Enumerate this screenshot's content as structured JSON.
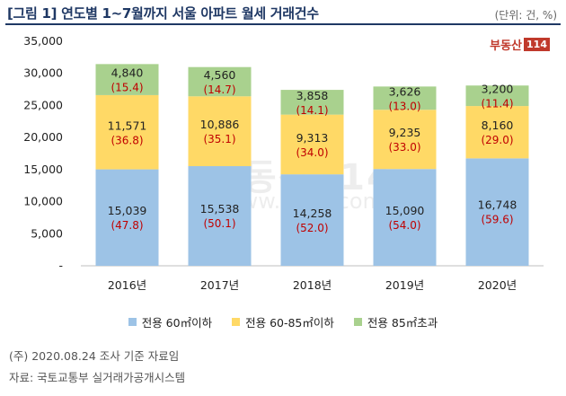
{
  "header": {
    "title": "[그림 1] 연도별 1~7월까지 서울 아파트 월세 거래건수",
    "unit": "(단위: 건, %)"
  },
  "logo": {
    "text": "부동산",
    "number": "114"
  },
  "watermark": {
    "text": "부동산114",
    "url": "www.r114.com"
  },
  "chart_data": {
    "type": "bar",
    "stacked": true,
    "categories": [
      "2016년",
      "2017년",
      "2018년",
      "2019년",
      "2020년"
    ],
    "series": [
      {
        "name": "전용 60㎡이하",
        "color": "#9dc3e6",
        "values": [
          15039,
          15538,
          14258,
          15090,
          16748
        ],
        "value_labels": [
          "15,039",
          "15,538",
          "14,258",
          "15,090",
          "16,748"
        ],
        "pct_labels": [
          "(47.8)",
          "(50.1)",
          "(52.0)",
          "(54.0)",
          "(59.6)"
        ]
      },
      {
        "name": "전용 60-85㎡이하",
        "color": "#ffd966",
        "values": [
          11571,
          10886,
          9313,
          9235,
          8160
        ],
        "value_labels": [
          "11,571",
          "10,886",
          "9,313",
          "9,235",
          "8,160"
        ],
        "pct_labels": [
          "(36.8)",
          "(35.1)",
          "(34.0)",
          "(33.0)",
          "(29.0)"
        ]
      },
      {
        "name": "전용 85㎡초과",
        "color": "#a9d18e",
        "values": [
          4840,
          4560,
          3858,
          3626,
          3200
        ],
        "value_labels": [
          "4,840",
          "4,560",
          "3,858",
          "3,626",
          "3,200"
        ],
        "pct_labels": [
          "(15.4)",
          "(14.7)",
          "(14.1)",
          "(13.0)",
          "(11.4)"
        ]
      }
    ],
    "yticks": [
      0,
      5000,
      10000,
      15000,
      20000,
      25000,
      30000,
      35000
    ],
    "ytick_labels": [
      "-",
      "5,000",
      "10,000",
      "15,000",
      "20,000",
      "25,000",
      "30,000",
      "35,000"
    ],
    "ylim": [
      0,
      35000
    ],
    "pct_color": "#c00000",
    "grid": false,
    "legend_position": "bottom"
  },
  "footnotes": {
    "survey": "(주) 2020.08.24 조사 기준 자료임",
    "source": "자료: 국토교통부 실거래가공개시스템"
  }
}
